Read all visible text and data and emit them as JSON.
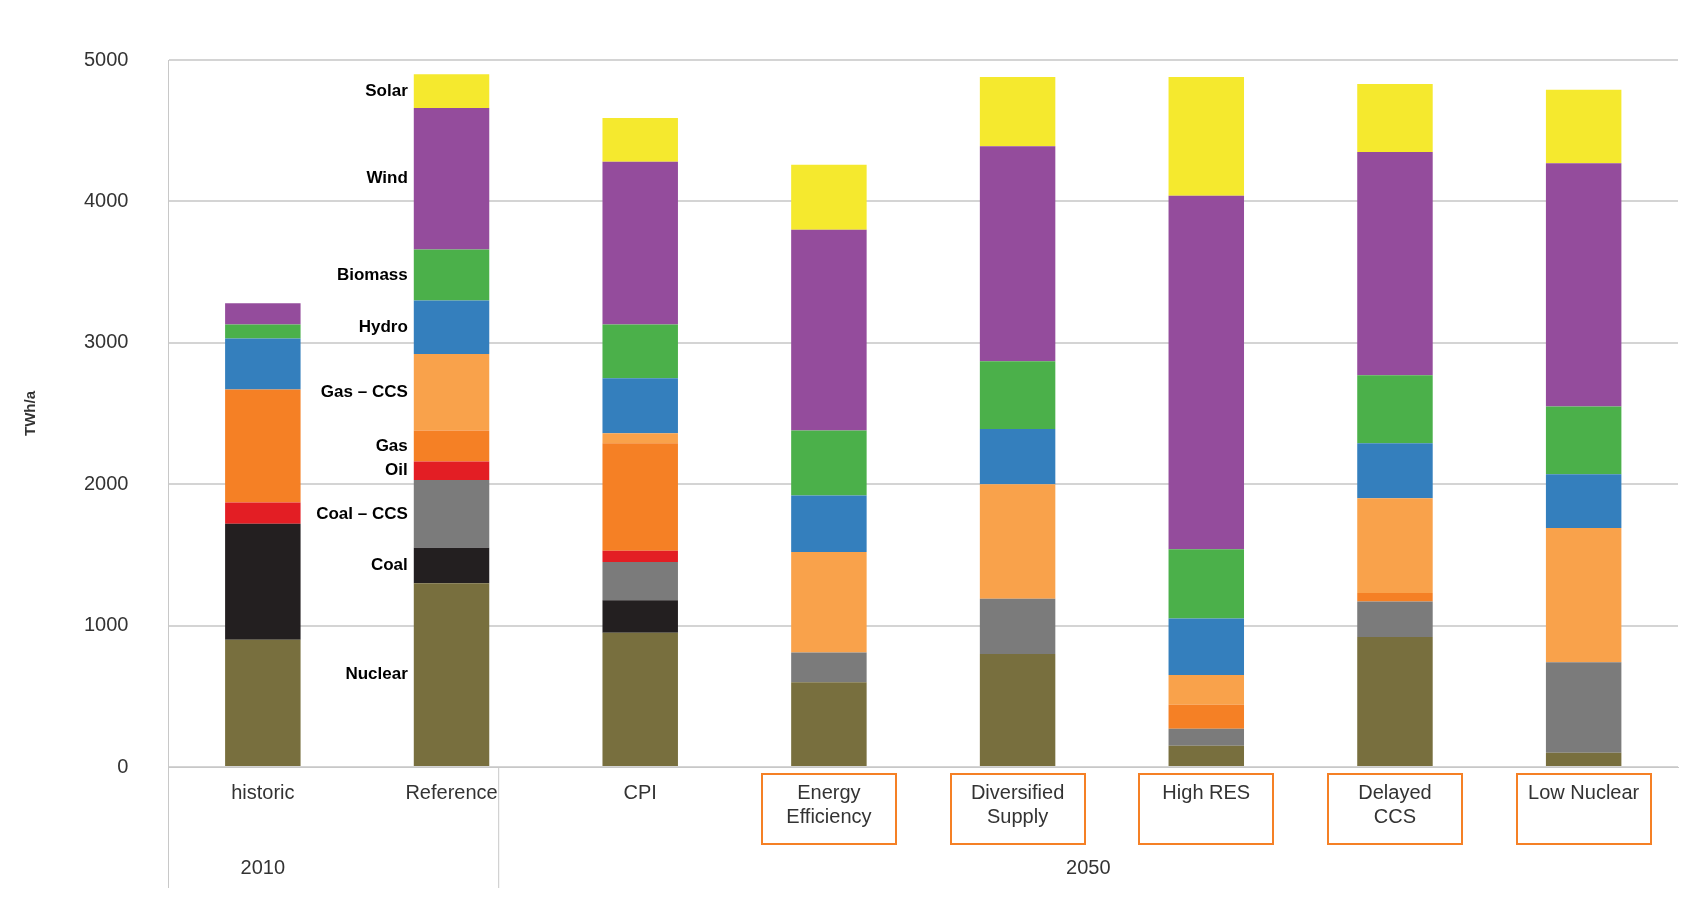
{
  "chart_data": {
    "type": "bar",
    "stacked": true,
    "ylabel": "TWh/a",
    "categories": [
      "historic",
      "Reference",
      "CPI",
      "Energy Efficiency",
      "Diversified Supply",
      "High RES",
      "Delayed CCS",
      "Low Nuclear"
    ],
    "series": [
      {
        "name": "Nuclear",
        "color": "#786f3e",
        "values": [
          900,
          1300,
          950,
          600,
          800,
          150,
          920,
          100
        ]
      },
      {
        "name": "Coal",
        "color": "#231f20",
        "values": [
          820,
          250,
          230,
          0,
          0,
          0,
          0,
          0
        ]
      },
      {
        "name": "Coal – CCS",
        "color": "#7b7b7b",
        "values": [
          0,
          480,
          270,
          210,
          390,
          120,
          250,
          640
        ]
      },
      {
        "name": "Oil",
        "color": "#e31e24",
        "values": [
          150,
          130,
          80,
          0,
          0,
          0,
          0,
          0
        ]
      },
      {
        "name": "Gas",
        "color": "#f58025",
        "values": [
          800,
          220,
          760,
          0,
          0,
          170,
          60,
          0
        ]
      },
      {
        "name": "Gas – CCS",
        "color": "#f9a24b",
        "values": [
          0,
          540,
          70,
          710,
          810,
          210,
          670,
          950
        ]
      },
      {
        "name": "Hydro",
        "color": "#347fbd",
        "values": [
          360,
          380,
          390,
          400,
          390,
          400,
          390,
          380
        ]
      },
      {
        "name": "Biomass",
        "color": "#4bb04a",
        "values": [
          100,
          360,
          380,
          460,
          480,
          490,
          480,
          480
        ]
      },
      {
        "name": "Wind",
        "color": "#944c9c",
        "values": [
          150,
          1000,
          1150,
          1420,
          1520,
          2500,
          1580,
          1720
        ]
      },
      {
        "name": "Solar",
        "color": "#f5e92e",
        "values": [
          0,
          240,
          310,
          460,
          490,
          840,
          480,
          520
        ]
      }
    ],
    "ylim": [
      0,
      5000
    ],
    "yticks": [
      0,
      1000,
      2000,
      3000,
      4000,
      5000
    ],
    "grid": "y",
    "legend": false,
    "annotations": [
      "2010",
      "2050"
    ]
  }
}
